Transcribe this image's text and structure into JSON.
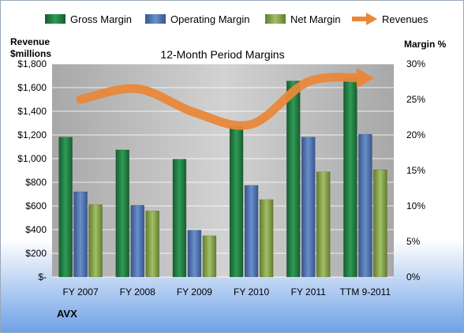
{
  "chart_data": {
    "type": "bar",
    "title": "12-Month Period Margins",
    "company_label": "AVX",
    "categories": [
      "FY 2007",
      "FY 2008",
      "FY 2009",
      "FY 2010",
      "FY 2011",
      "TTM 9-2011"
    ],
    "left_axis": {
      "label_line1": "Revenue",
      "label_line2": "$millions",
      "ylim": [
        0,
        1800
      ],
      "ticks": [
        0,
        200,
        400,
        600,
        800,
        1000,
        1200,
        1400,
        1600,
        1800
      ],
      "tick_labels": [
        "$-",
        "$200",
        "$400",
        "$600",
        "$800",
        "$1,000",
        "$1,200",
        "$1,400",
        "$1,600",
        "$1,800"
      ]
    },
    "right_axis": {
      "label": "Margin %",
      "ylim": [
        0,
        30
      ],
      "ticks": [
        0,
        5,
        10,
        15,
        20,
        25,
        30
      ],
      "tick_labels": [
        "0%",
        "5%",
        "10%",
        "15%",
        "20%",
        "25%",
        "30%"
      ]
    },
    "series": [
      {
        "name": "Gross Margin",
        "kind": "bar",
        "axis": "right",
        "color": "#1e7a3e",
        "values": [
          19.7,
          17.9,
          16.6,
          21.2,
          27.6,
          28.1
        ]
      },
      {
        "name": "Operating Margin",
        "kind": "bar",
        "axis": "right",
        "color": "#4a6fae",
        "values": [
          12.0,
          10.1,
          6.6,
          12.9,
          19.7,
          20.1
        ]
      },
      {
        "name": "Net Margin",
        "kind": "bar",
        "axis": "right",
        "color": "#7e9b42",
        "values": [
          10.2,
          9.3,
          5.8,
          10.9,
          14.8,
          15.1
        ]
      },
      {
        "name": "Revenues",
        "kind": "line",
        "axis": "left",
        "color": "#e8883a",
        "values": [
          1500,
          1590,
          1390,
          1290,
          1650,
          1680
        ]
      }
    ],
    "grid": true,
    "legend_position": "top"
  }
}
